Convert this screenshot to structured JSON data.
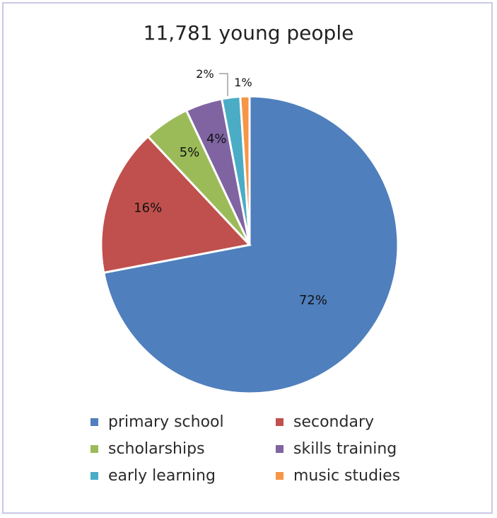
{
  "chart_data": {
    "type": "pie",
    "title": "11,781 young people",
    "slices": [
      {
        "label": "primary school",
        "value": 72,
        "pct_label": "72%",
        "color": "#4f7fbd"
      },
      {
        "label": "secondary",
        "value": 16,
        "pct_label": "16%",
        "color": "#c0504d"
      },
      {
        "label": "scholarships",
        "value": 5,
        "pct_label": "5%",
        "color": "#9bbb59"
      },
      {
        "label": "skills training",
        "value": 4,
        "pct_label": "4%",
        "color": "#8064a2"
      },
      {
        "label": "early learning",
        "value": 2,
        "pct_label": "2%",
        "color": "#4bacc6"
      },
      {
        "label": "music studies",
        "value": 1,
        "pct_label": "1%",
        "color": "#f79646"
      }
    ],
    "legend_position": "bottom"
  }
}
